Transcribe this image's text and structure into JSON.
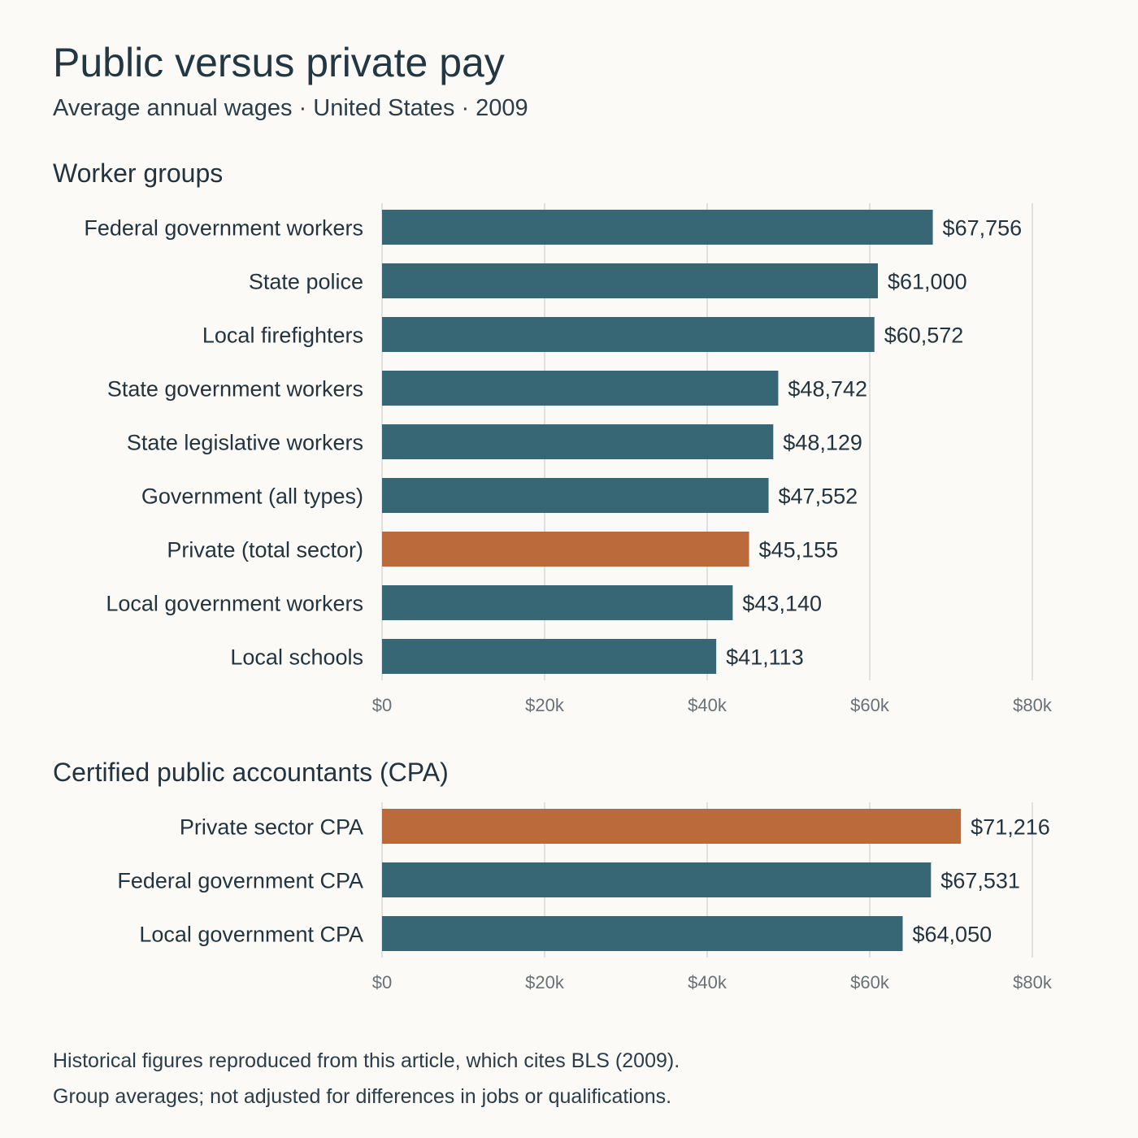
{
  "title": "Public versus private pay",
  "subtitle": "Average annual wages · United States · 2009",
  "colors": {
    "public": "#376674",
    "private": "#bb6a3c"
  },
  "chart_data": [
    {
      "type": "bar",
      "orientation": "horizontal",
      "section_title": "Worker groups",
      "xlim": [
        0,
        80000
      ],
      "ticks": [
        {
          "value": 0,
          "label": "$0"
        },
        {
          "value": 20000,
          "label": "$20k"
        },
        {
          "value": 40000,
          "label": "$40k"
        },
        {
          "value": 60000,
          "label": "$60k"
        },
        {
          "value": 80000,
          "label": "$80k"
        }
      ],
      "grid": true,
      "bars": [
        {
          "category": "Federal government workers",
          "value": 67756,
          "label": "$67,756",
          "group": "public"
        },
        {
          "category": "State police",
          "value": 61000,
          "label": "$61,000",
          "group": "public"
        },
        {
          "category": "Local firefighters",
          "value": 60572,
          "label": "$60,572",
          "group": "public"
        },
        {
          "category": "State government workers",
          "value": 48742,
          "label": "$48,742",
          "group": "public"
        },
        {
          "category": "State legislative workers",
          "value": 48129,
          "label": "$48,129",
          "group": "public"
        },
        {
          "category": "Government (all types)",
          "value": 47552,
          "label": "$47,552",
          "group": "public"
        },
        {
          "category": "Private (total sector)",
          "value": 45155,
          "label": "$45,155",
          "group": "private"
        },
        {
          "category": "Local government workers",
          "value": 43140,
          "label": "$43,140",
          "group": "public"
        },
        {
          "category": "Local schools",
          "value": 41113,
          "label": "$41,113",
          "group": "public"
        }
      ]
    },
    {
      "type": "bar",
      "orientation": "horizontal",
      "section_title": "Certified public accountants (CPA)",
      "xlim": [
        0,
        80000
      ],
      "ticks": [
        {
          "value": 0,
          "label": "$0"
        },
        {
          "value": 20000,
          "label": "$20k"
        },
        {
          "value": 40000,
          "label": "$40k"
        },
        {
          "value": 60000,
          "label": "$60k"
        },
        {
          "value": 80000,
          "label": "$80k"
        }
      ],
      "grid": true,
      "bars": [
        {
          "category": "Private sector CPA",
          "value": 71216,
          "label": "$71,216",
          "group": "private"
        },
        {
          "category": "Federal government CPA",
          "value": 67531,
          "label": "$67,531",
          "group": "public"
        },
        {
          "category": "Local government CPA",
          "value": 64050,
          "label": "$64,050",
          "group": "public"
        }
      ]
    }
  ],
  "footnotes": [
    "Historical figures reproduced from this article, which cites BLS (2009).",
    "Group averages; not adjusted for differences in jobs or qualifications."
  ]
}
